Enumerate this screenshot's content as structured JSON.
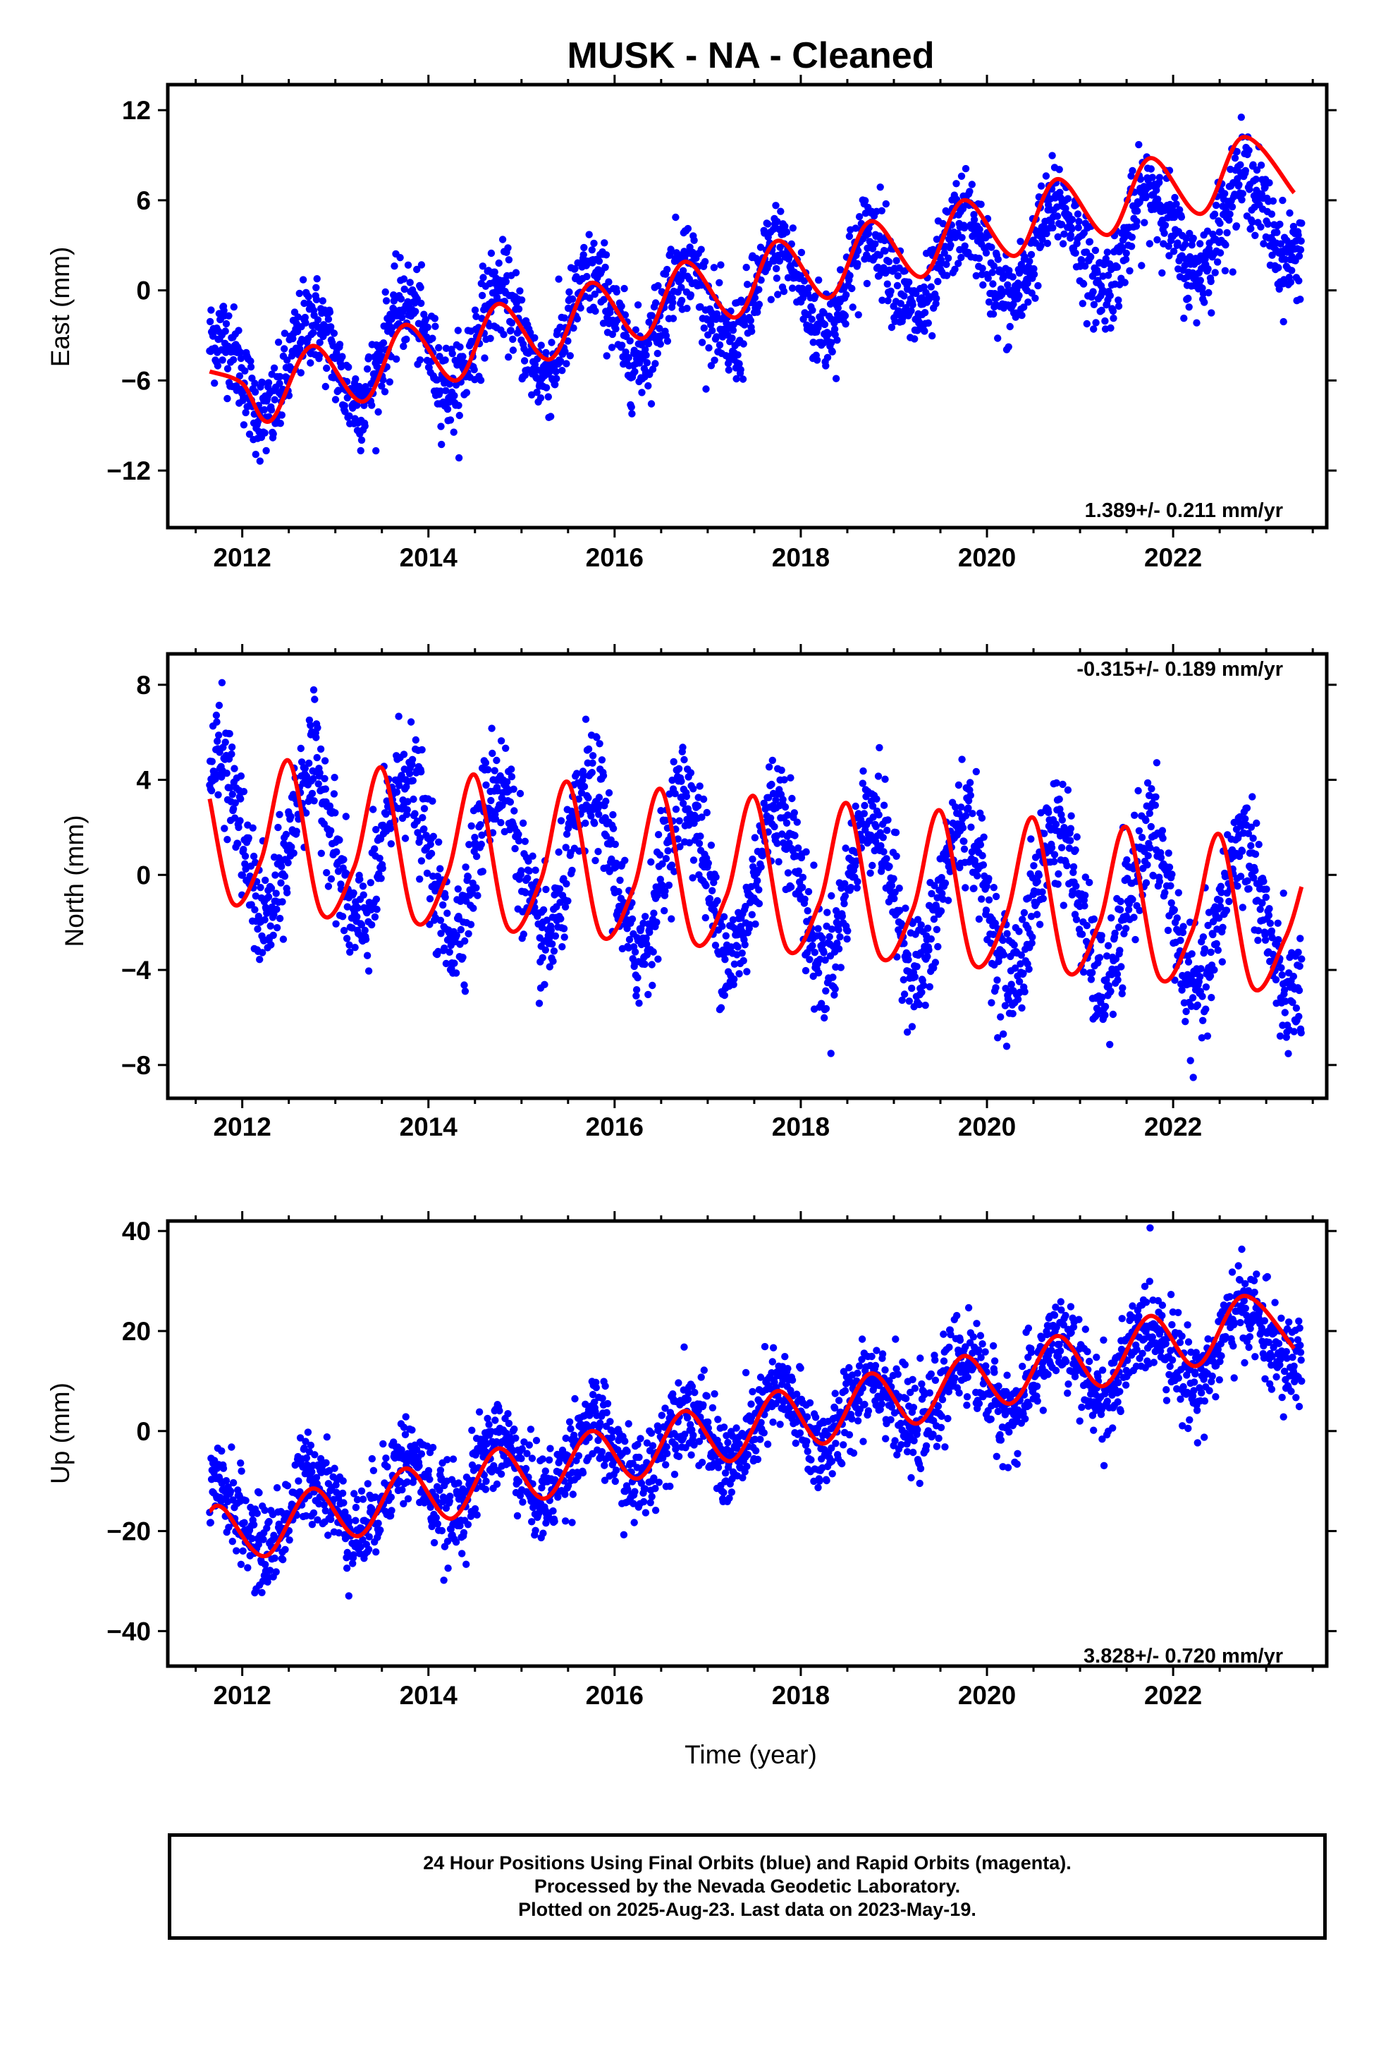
{
  "title": "MUSK  - NA - Cleaned",
  "xlabel": "Time (year)",
  "colors": {
    "points": "#0000ff",
    "model": "#ff0000",
    "frame": "#000000"
  },
  "chart_data": [
    {
      "type": "scatter",
      "ylabel": "East (mm)",
      "rate_label": "1.389+/- 0.211 mm/yr",
      "rate_position": "bottom-right",
      "xlim": [
        2011.2,
        2023.65
      ],
      "ylim": [
        -15.8,
        13.7
      ],
      "yticks": [
        -12,
        -6,
        0,
        6,
        12
      ],
      "yticklabels": [
        "−12",
        "−6",
        "0",
        "6",
        "12"
      ],
      "xticks": [
        2012,
        2014,
        2016,
        2018,
        2020,
        2022
      ],
      "xticklabels": [
        "2012",
        "2014",
        "2016",
        "2018",
        "2020",
        "2022"
      ],
      "series": [
        {
          "kind": "points",
          "values_source": "daily positions (blue)",
          "x_range": [
            2011.65,
            2023.38
          ],
          "trend": [
            -6.0,
            0.96
          ],
          "amp_annual": 3.0,
          "noise": 2.0
        },
        {
          "kind": "model",
          "x": [
            2011.65,
            2012.0,
            2012.3,
            2012.75,
            2013.3,
            2013.75,
            2014.3,
            2014.75,
            2015.3,
            2015.75,
            2016.3,
            2016.75,
            2017.3,
            2017.75,
            2018.3,
            2018.75,
            2019.3,
            2019.75,
            2020.3,
            2020.75,
            2021.3,
            2021.75,
            2022.3,
            2022.75,
            2023.3
          ],
          "y": [
            -5.4,
            -6.2,
            -8.7,
            -3.7,
            -7.4,
            -2.3,
            -6.0,
            -0.9,
            -4.6,
            0.5,
            -3.2,
            1.9,
            -1.8,
            3.3,
            -0.5,
            4.6,
            0.9,
            6.0,
            2.3,
            7.4,
            3.7,
            8.8,
            5.1,
            10.2,
            6.5
          ]
        }
      ]
    },
    {
      "type": "scatter",
      "ylabel": "North (mm)",
      "rate_label": "-0.315+/- 0.189 mm/yr",
      "rate_position": "top-right",
      "xlim": [
        2011.2,
        2023.65
      ],
      "ylim": [
        -9.4,
        9.3
      ],
      "yticks": [
        -8,
        -4,
        0,
        4,
        8
      ],
      "yticklabels": [
        "−8",
        "−4",
        "0",
        "4",
        "8"
      ],
      "xticks": [
        2012,
        2014,
        2016,
        2018,
        2020,
        2022
      ],
      "xticklabels": [
        "2012",
        "2014",
        "2016",
        "2018",
        "2020",
        "2022"
      ],
      "series": [
        {
          "kind": "points",
          "values_source": "daily positions (blue)",
          "x_range": [
            2011.65,
            2023.38
          ],
          "trend": [
            1.6,
            -0.315
          ],
          "amp_annual": 3.3,
          "noise": 1.6
        },
        {
          "kind": "model",
          "x": [
            2011.65,
            2011.9,
            2012.2,
            2012.5,
            2012.85,
            2013.2,
            2013.5,
            2013.85,
            2014.2,
            2014.5,
            2014.85,
            2015.2,
            2015.5,
            2015.85,
            2016.2,
            2016.5,
            2016.85,
            2017.2,
            2017.5,
            2017.85,
            2018.2,
            2018.5,
            2018.85,
            2019.2,
            2019.5,
            2019.85,
            2020.2,
            2020.5,
            2020.85,
            2021.2,
            2021.5,
            2021.85,
            2022.2,
            2022.5,
            2022.85,
            2023.2,
            2023.38
          ],
          "y": [
            3.2,
            -1.2,
            0.6,
            4.8,
            -1.6,
            0.3,
            4.5,
            -1.9,
            0.0,
            4.2,
            -2.2,
            -0.3,
            3.9,
            -2.5,
            -0.6,
            3.6,
            -2.8,
            -0.9,
            3.3,
            -3.1,
            -1.2,
            3.0,
            -3.4,
            -1.5,
            2.7,
            -3.7,
            -1.8,
            2.4,
            -4.0,
            -2.1,
            2.0,
            -4.3,
            -2.4,
            1.7,
            -4.7,
            -2.7,
            -0.5
          ]
        }
      ]
    },
    {
      "type": "scatter",
      "ylabel": "Up (mm)",
      "rate_label": "3.828+/- 0.720 mm/yr",
      "rate_position": "bottom-right",
      "xlim": [
        2011.2,
        2023.65
      ],
      "ylim": [
        -47,
        42
      ],
      "yticks": [
        -40,
        -20,
        0,
        20,
        40
      ],
      "yticklabels": [
        "−40",
        "−20",
        "0",
        "20",
        "40"
      ],
      "xticks": [
        2012,
        2014,
        2016,
        2018,
        2020,
        2022
      ],
      "xticklabels": [
        "2012",
        "2014",
        "2016",
        "2018",
        "2020",
        "2022"
      ],
      "series": [
        {
          "kind": "points",
          "values_source": "daily positions (blue)",
          "x_range": [
            2011.65,
            2023.38
          ],
          "trend": [
            -19.0,
            3.35
          ],
          "amp_annual": 6.5,
          "noise": 6.0
        },
        {
          "kind": "model",
          "x": [
            2011.65,
            2011.8,
            2012.25,
            2012.75,
            2013.25,
            2013.75,
            2014.25,
            2014.75,
            2015.25,
            2015.75,
            2016.25,
            2016.75,
            2017.25,
            2017.75,
            2018.25,
            2018.75,
            2019.25,
            2019.75,
            2020.25,
            2020.75,
            2021.25,
            2021.75,
            2022.25,
            2022.75,
            2023.3
          ],
          "y": [
            -16.0,
            -15.5,
            -25.0,
            -11.5,
            -21.0,
            -7.5,
            -17.5,
            -3.5,
            -13.5,
            0.0,
            -9.5,
            4.0,
            -6.0,
            8.0,
            -2.5,
            11.5,
            1.5,
            15.0,
            5.5,
            19.0,
            9.0,
            23.0,
            13.0,
            27.0,
            16.5
          ]
        }
      ]
    }
  ],
  "footer": {
    "line1": "24 Hour Positions Using Final Orbits (blue) and Rapid Orbits (magenta).",
    "line2": "Processed by the Nevada Geodetic Laboratory.",
    "line3": "Plotted on 2025-Aug-23. Last data on 2023-May-19."
  }
}
